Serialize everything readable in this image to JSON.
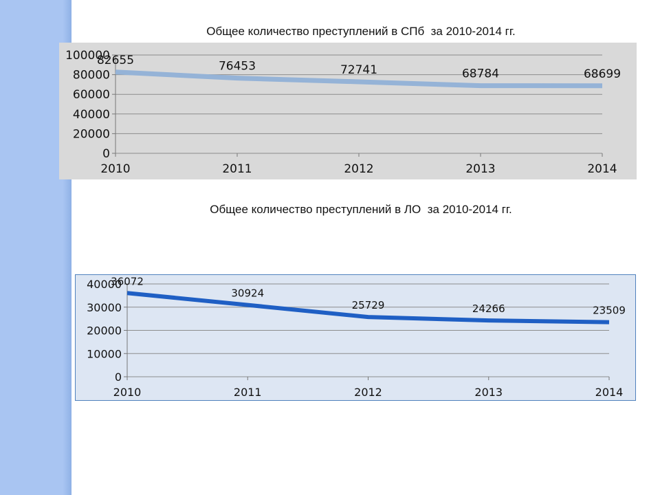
{
  "chart_data": [
    {
      "type": "line",
      "title": "Общее количество преступлений в СПб  за 2010-2014 гг.",
      "categories": [
        "2010",
        "2011",
        "2012",
        "2013",
        "2014"
      ],
      "series": [
        {
          "values": [
            82655,
            76453,
            72741,
            68784,
            68699
          ]
        }
      ],
      "data_labels": [
        "82655",
        "76453",
        "72741",
        "68784",
        "68699"
      ],
      "yticks": [
        "0",
        "20000",
        "40000",
        "60000",
        "80000",
        "100000"
      ],
      "ylim": [
        0,
        100000
      ],
      "line_color": "#95b3d7",
      "grid": true
    },
    {
      "type": "line",
      "title": "Общее количество преступлений в ЛО  за 2010-2014 гг.",
      "categories": [
        "2010",
        "2011",
        "2012",
        "2013",
        "2014"
      ],
      "series": [
        {
          "values": [
            36072,
            30924,
            25729,
            24266,
            23509
          ]
        }
      ],
      "data_labels": [
        "36072",
        "30924",
        "25729",
        "24266",
        "23509"
      ],
      "yticks": [
        "0",
        "10000",
        "20000",
        "30000",
        "40000"
      ],
      "ylim": [
        0,
        40000
      ],
      "line_color": "#1f5fc4",
      "grid": true
    }
  ]
}
